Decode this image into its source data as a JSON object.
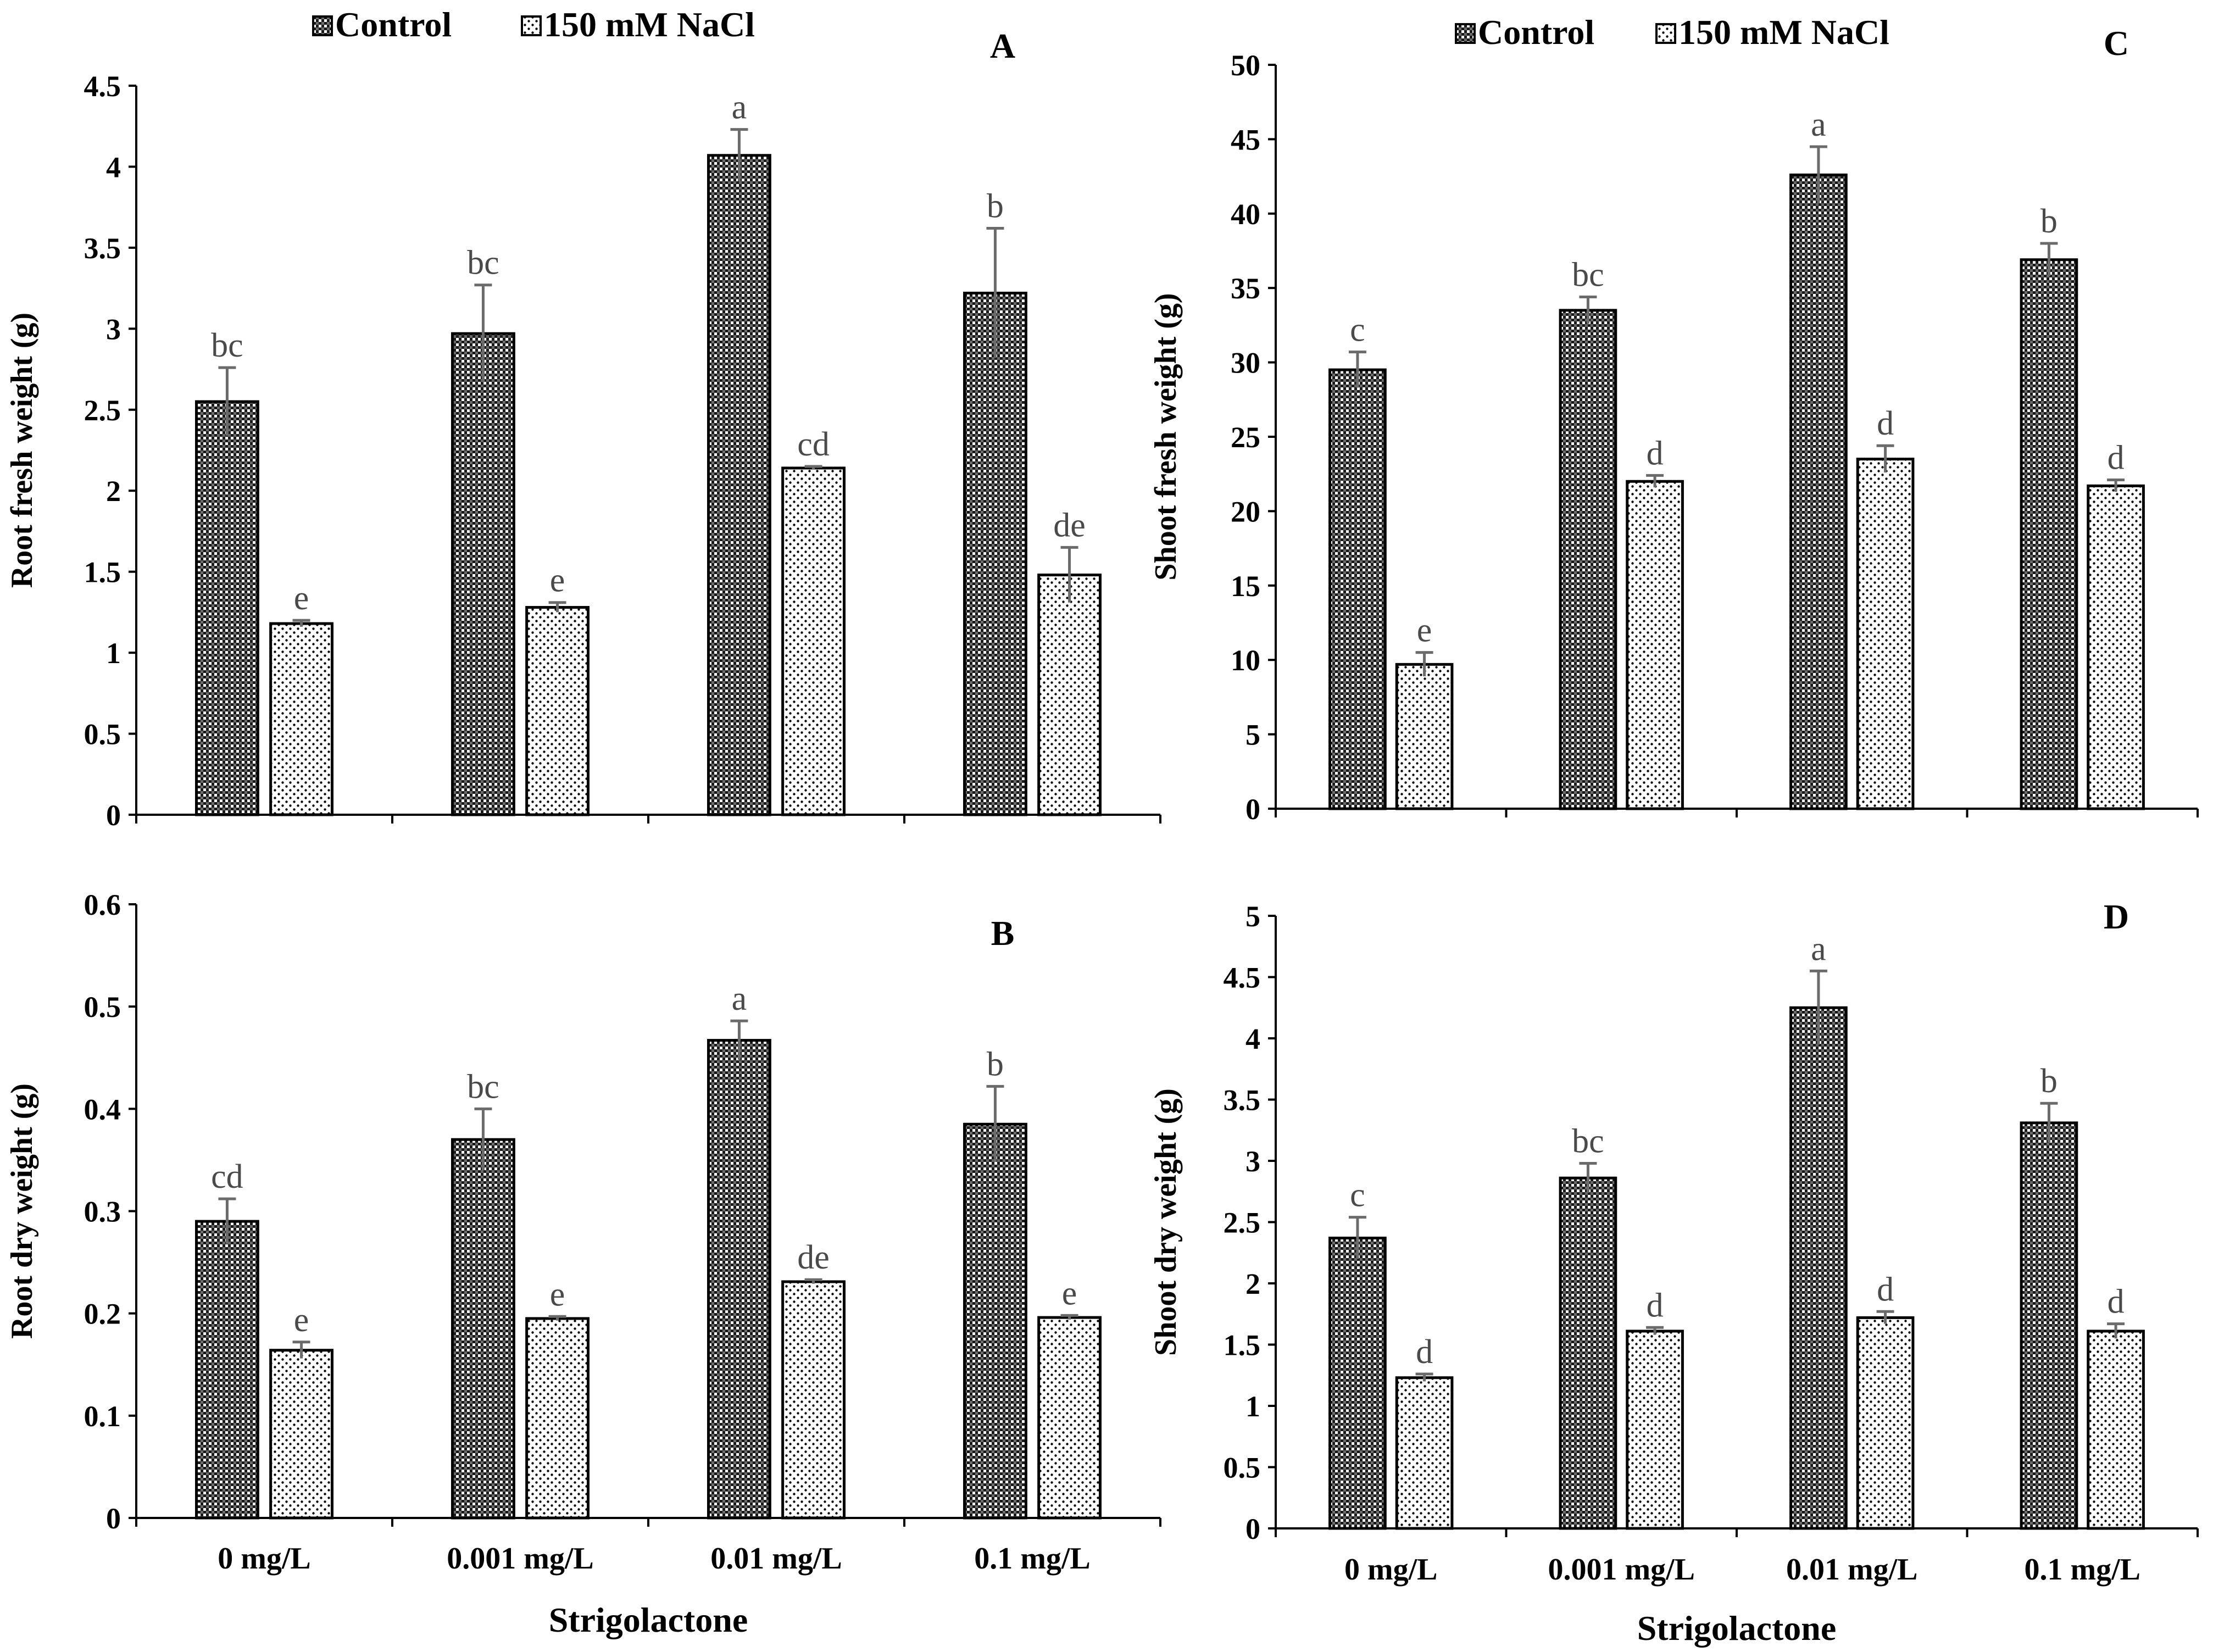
{
  "legend": {
    "series": [
      {
        "name": "Control",
        "swatch": "control",
        "color": "#3a3a3a"
      },
      {
        "name": "150 mM NaCl",
        "swatch": "nacl",
        "color": "#ffffff"
      }
    ]
  },
  "chart_data": [
    {
      "panel": "A",
      "type": "bar",
      "ylabel": "Root fresh weight (g)",
      "xlabel": "",
      "categories": [
        "0 mg/L",
        "0.001 mg/L",
        "0.01 mg/L",
        "0.1 mg/L"
      ],
      "ylim": [
        0,
        4.5
      ],
      "yticks": [
        0,
        0.5,
        1,
        1.5,
        2,
        2.5,
        3,
        3.5,
        4,
        4.5
      ],
      "ytick_labels": [
        "0",
        "0.5",
        "1",
        "1.5",
        "2",
        "2.5",
        "3",
        "3.5",
        "4",
        "4.5"
      ],
      "series": [
        {
          "name": "Control",
          "values": [
            2.55,
            2.97,
            4.07,
            3.22
          ],
          "errors": [
            0.21,
            0.3,
            0.16,
            0.4
          ],
          "letters": [
            "bc",
            "bc",
            "a",
            "b"
          ]
        },
        {
          "name": "150 mM NaCl",
          "values": [
            1.18,
            1.28,
            2.14,
            1.48
          ],
          "errors": [
            0.02,
            0.03,
            0.01,
            0.17
          ],
          "letters": [
            "e",
            "e",
            "cd",
            "de"
          ]
        }
      ]
    },
    {
      "panel": "B",
      "type": "bar",
      "ylabel": "Root dry weight (g)",
      "xlabel": "Strigolactone",
      "categories": [
        "0 mg/L",
        "0.001 mg/L",
        "0.01 mg/L",
        "0.1 mg/L"
      ],
      "ylim": [
        0,
        0.6
      ],
      "yticks": [
        0,
        0.1,
        0.2,
        0.3,
        0.4,
        0.5,
        0.6
      ],
      "ytick_labels": [
        "0",
        "0.1",
        "0.2",
        "0.3",
        "0.4",
        "0.5",
        "0.6"
      ],
      "series": [
        {
          "name": "Control",
          "values": [
            0.29,
            0.37,
            0.467,
            0.385
          ],
          "errors": [
            0.022,
            0.03,
            0.019,
            0.037
          ],
          "letters": [
            "cd",
            "bc",
            "a",
            "b"
          ]
        },
        {
          "name": "150 mM NaCl",
          "values": [
            0.164,
            0.195,
            0.231,
            0.196
          ],
          "errors": [
            0.008,
            0.002,
            0.002,
            0.002
          ],
          "letters": [
            "e",
            "e",
            "de",
            "e"
          ]
        }
      ]
    },
    {
      "panel": "C",
      "type": "bar",
      "ylabel": "Shoot fresh weight (g)",
      "xlabel": "",
      "categories": [
        "0 mg/L",
        "0.001 mg/L",
        "0.01 mg/L",
        "0.1 mg/L"
      ],
      "ylim": [
        0,
        50
      ],
      "yticks": [
        0,
        5,
        10,
        15,
        20,
        25,
        30,
        35,
        40,
        45,
        50
      ],
      "ytick_labels": [
        "0",
        "5",
        "10",
        "15",
        "20",
        "25",
        "30",
        "35",
        "40",
        "45",
        "50"
      ],
      "series": [
        {
          "name": "Control",
          "values": [
            29.5,
            33.5,
            42.6,
            36.9
          ],
          "errors": [
            1.2,
            0.9,
            1.9,
            1.1
          ],
          "letters": [
            "c",
            "bc",
            "a",
            "b"
          ]
        },
        {
          "name": "150 mM NaCl",
          "values": [
            9.7,
            22.0,
            23.5,
            21.7
          ],
          "errors": [
            0.8,
            0.4,
            0.9,
            0.4
          ],
          "letters": [
            "e",
            "d",
            "d",
            "d"
          ]
        }
      ]
    },
    {
      "panel": "D",
      "type": "bar",
      "ylabel": "Shoot dry weight (g)",
      "xlabel": "Strigolactone",
      "categories": [
        "0 mg/L",
        "0.001 mg/L",
        "0.01 mg/L",
        "0.1 mg/L"
      ],
      "ylim": [
        0,
        5
      ],
      "yticks": [
        0,
        0.5,
        1,
        1.5,
        2,
        2.5,
        3,
        3.5,
        4,
        4.5,
        5
      ],
      "ytick_labels": [
        "0",
        "0.5",
        "1",
        "1.5",
        "2",
        "2.5",
        "3",
        "3.5",
        "4",
        "4.5",
        "5"
      ],
      "series": [
        {
          "name": "Control",
          "values": [
            2.37,
            2.86,
            4.25,
            3.31
          ],
          "errors": [
            0.17,
            0.12,
            0.3,
            0.16
          ],
          "letters": [
            "c",
            "bc",
            "a",
            "b"
          ]
        },
        {
          "name": "150 mM NaCl",
          "values": [
            1.23,
            1.61,
            1.72,
            1.61
          ],
          "errors": [
            0.03,
            0.03,
            0.05,
            0.06
          ],
          "letters": [
            "d",
            "d",
            "d",
            "d"
          ]
        }
      ]
    }
  ]
}
